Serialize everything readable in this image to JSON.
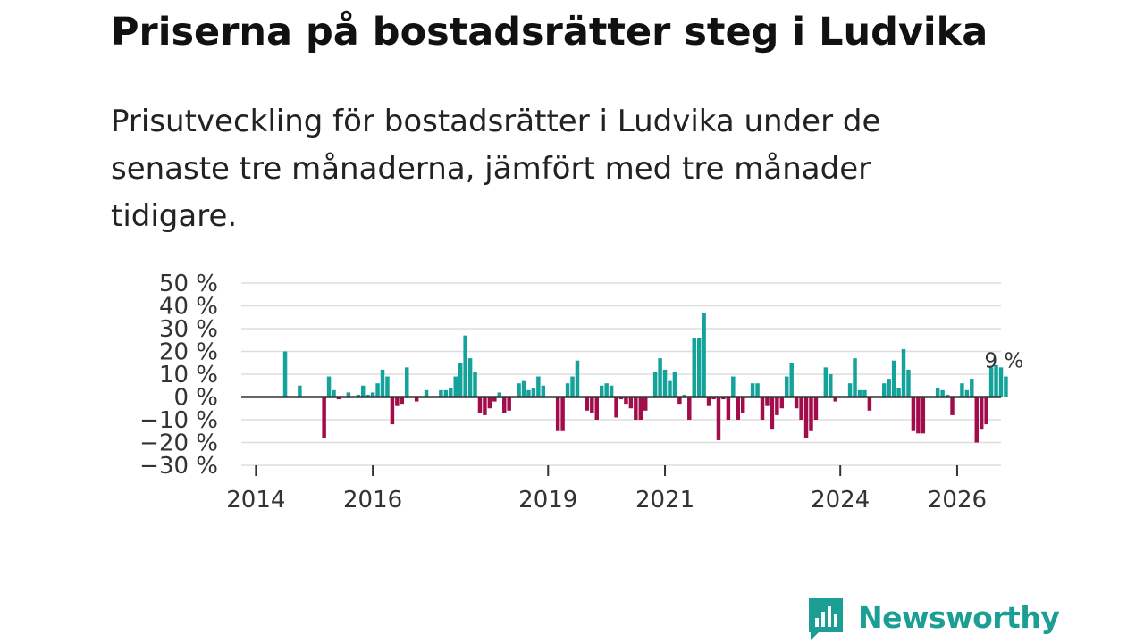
{
  "header": {
    "title": "Priserna på bostadsrätter steg i Ludvika",
    "subtitle": "Prisutveckling för bostadsrätter i Ludvika under de senaste tre månaderna, jämfört med tre månader tidigare."
  },
  "brand": {
    "name": "Newsworthy",
    "color": "#1b9e94",
    "icon": "bar-chart-speech-bubble-icon"
  },
  "colors": {
    "positive": "#14a39a",
    "negative": "#a10d4b",
    "grid": "#dddddd",
    "zero_line": "#333333"
  },
  "chart_data": {
    "type": "bar",
    "title": "Priserna på bostadsrätter steg i Ludvika",
    "ylim": [
      -30,
      50
    ],
    "y_ticks": [
      50,
      40,
      30,
      20,
      10,
      0,
      -10,
      -20,
      -30
    ],
    "y_tick_labels": [
      "50 %",
      "40 %",
      "30 %",
      "20 %",
      "10 %",
      "0 %",
      "−10 %",
      "−20 %",
      "−30 %"
    ],
    "x_ticks": [
      2014,
      2016,
      2019,
      2021,
      2024,
      2026
    ],
    "x_tick_labels": [
      "2014",
      "2016",
      "2019",
      "2021",
      "2024",
      "2026"
    ],
    "x_range": [
      2013.75,
      2026.75
    ],
    "annotation": {
      "text": "9 %"
    },
    "series": [
      {
        "name": "Prisutveckling",
        "start": 2014.5,
        "step_months": 1,
        "values": [
          20,
          0,
          0,
          5,
          0,
          0,
          0,
          0,
          -18,
          9,
          3,
          -1,
          0,
          2,
          0,
          1,
          5,
          1,
          2,
          6,
          12,
          9,
          -12,
          -4,
          -3,
          13,
          0,
          -2,
          0,
          3,
          0,
          0,
          3,
          3,
          4,
          9,
          15,
          27,
          17,
          11,
          -7,
          -8,
          -5,
          -2,
          2,
          -7,
          -6,
          0,
          6,
          7,
          3,
          4,
          9,
          5,
          0,
          0,
          -15,
          -15,
          6,
          9,
          16,
          0,
          -6,
          -7,
          -10,
          5,
          6,
          5,
          -9,
          -1,
          -3,
          -5,
          -10,
          -10,
          -6,
          0,
          11,
          17,
          12,
          7,
          11,
          -3,
          1,
          -10,
          26,
          26,
          37,
          -4,
          -1,
          -19,
          -1,
          -10,
          9,
          -10,
          -7,
          0,
          6,
          6,
          -10,
          -4,
          -14,
          -8,
          -5,
          9,
          15,
          -5,
          -10,
          -18,
          -15,
          -10,
          0,
          13,
          10,
          -2,
          0,
          0,
          6,
          17,
          3,
          3,
          -6,
          0,
          0,
          6,
          8,
          16,
          4,
          21,
          12,
          -15,
          -16,
          -16,
          0,
          0,
          4,
          3,
          1,
          -8,
          0,
          6,
          3,
          8,
          -20,
          -14,
          -12,
          13,
          14,
          13,
          9
        ]
      }
    ]
  }
}
